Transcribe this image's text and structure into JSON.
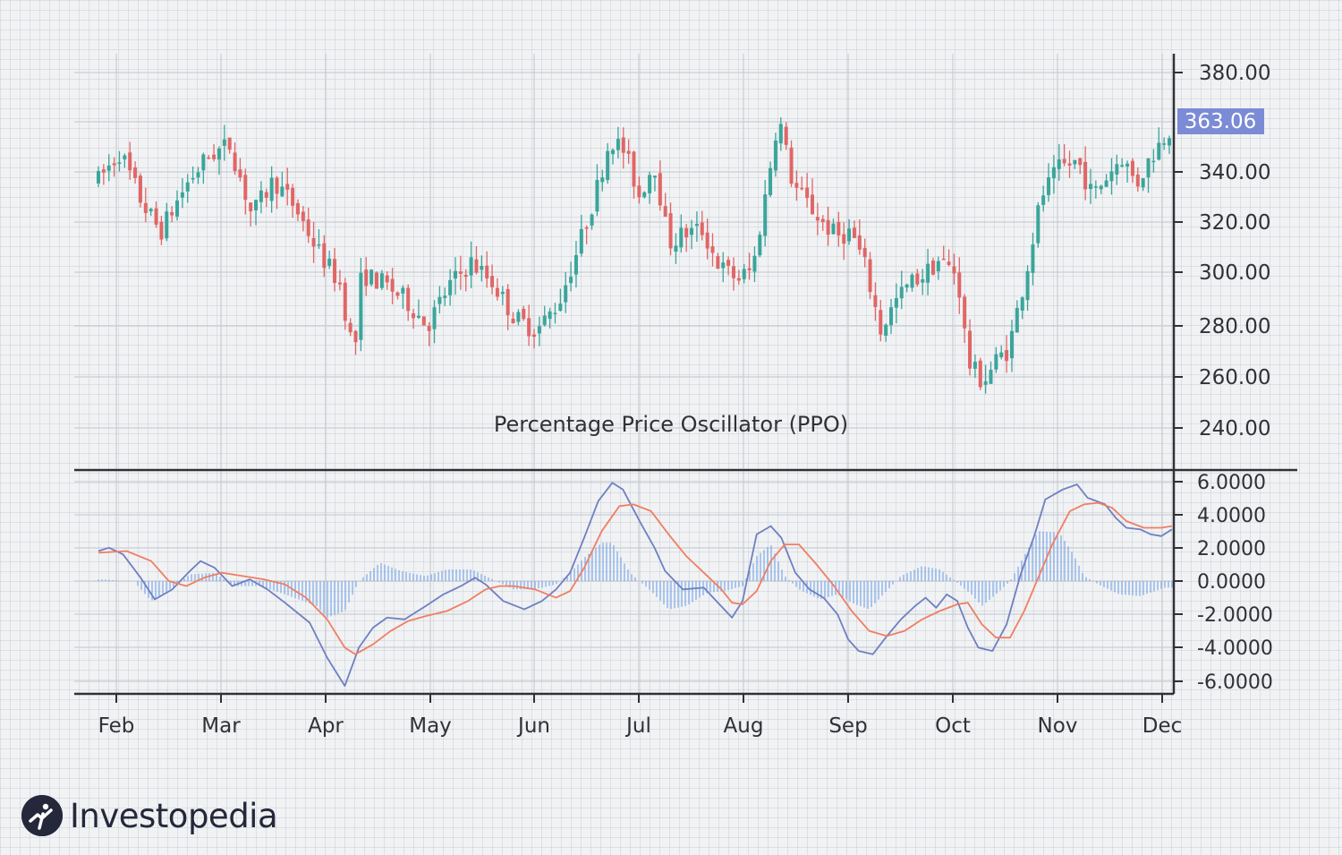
{
  "chart_data": [
    {
      "type": "candlestick",
      "title": "Percentage Price Oscillator (PPO)",
      "ylim": [
        228,
        388
      ],
      "yticks": [
        "380.00",
        "340.00",
        "320.00",
        "300.00",
        "280.00",
        "260.00",
        "240.00"
      ],
      "last_price": "363.06",
      "price_path": [
        [
          0,
          340
        ],
        [
          0.6,
          352
        ],
        [
          1.2,
          330
        ],
        [
          1.7,
          318
        ],
        [
          2.4,
          338
        ],
        [
          3.0,
          350
        ],
        [
          3.6,
          355
        ],
        [
          4.2,
          325
        ],
        [
          4.8,
          340
        ],
        [
          5.4,
          328
        ],
        [
          6.0,
          310
        ],
        [
          6.6,
          296
        ],
        [
          7.0,
          265
        ],
        [
          7.2,
          300
        ],
        [
          7.8,
          296
        ],
        [
          8.4,
          289
        ],
        [
          9.0,
          278
        ],
        [
          9.6,
          295
        ],
        [
          10.2,
          305
        ],
        [
          10.8,
          296
        ],
        [
          11.4,
          281
        ],
        [
          12.0,
          276
        ],
        [
          12.6,
          288
        ],
        [
          13.1,
          310
        ],
        [
          13.6,
          334
        ],
        [
          14.0,
          358
        ],
        [
          14.4,
          352
        ],
        [
          14.8,
          333
        ],
        [
          15.2,
          348
        ],
        [
          15.6,
          313
        ],
        [
          16.0,
          317
        ],
        [
          16.5,
          319
        ],
        [
          17.0,
          303
        ],
        [
          17.5,
          298
        ],
        [
          17.9,
          302
        ],
        [
          18.3,
          338
        ],
        [
          18.6,
          368
        ],
        [
          19.0,
          338
        ],
        [
          19.4,
          330
        ],
        [
          19.8,
          322
        ],
        [
          20.2,
          316
        ],
        [
          20.6,
          318
        ],
        [
          21.0,
          302
        ],
        [
          21.4,
          276
        ],
        [
          21.8,
          288
        ],
        [
          22.2,
          296
        ],
        [
          22.6,
          300
        ],
        [
          23.0,
          306
        ],
        [
          23.5,
          300
        ],
        [
          23.8,
          262
        ],
        [
          24.2,
          254
        ],
        [
          24.6,
          264
        ],
        [
          24.9,
          268
        ],
        [
          25.4,
          302
        ],
        [
          25.8,
          333
        ],
        [
          26.3,
          345
        ],
        [
          26.8,
          348
        ],
        [
          27.2,
          333
        ],
        [
          27.6,
          342
        ],
        [
          28.0,
          350
        ],
        [
          28.4,
          338
        ],
        [
          28.8,
          350
        ],
        [
          29.3,
          362
        ]
      ],
      "ppo_ylim": [
        -7,
        7
      ],
      "ppo_yticks": [
        "6.0000",
        "4.0000",
        "2.0000",
        "0.0000",
        "-2.0000",
        "-4.0000",
        "-6.0000"
      ],
      "ppo_series": [
        {
          "color": "#6f7fc2",
          "points": [
            [
              0,
              1.8
            ],
            [
              0.3,
              2.0
            ],
            [
              0.7,
              1.6
            ],
            [
              1.2,
              0.2
            ],
            [
              1.6,
              -1.1
            ],
            [
              2.1,
              -0.5
            ],
            [
              2.6,
              0.6
            ],
            [
              2.9,
              1.2
            ],
            [
              3.3,
              0.8
            ],
            [
              3.8,
              -0.3
            ],
            [
              4.3,
              0.1
            ],
            [
              4.8,
              -0.5
            ],
            [
              5.3,
              -1.3
            ],
            [
              6.0,
              -2.5
            ],
            [
              6.5,
              -4.6
            ],
            [
              7.0,
              -6.3
            ],
            [
              7.4,
              -4.0
            ],
            [
              7.8,
              -2.8
            ],
            [
              8.2,
              -2.2
            ],
            [
              8.7,
              -2.3
            ],
            [
              9.3,
              -1.5
            ],
            [
              9.8,
              -0.8
            ],
            [
              10.3,
              -0.3
            ],
            [
              10.7,
              0.2
            ],
            [
              11.0,
              -0.2
            ],
            [
              11.5,
              -1.2
            ],
            [
              12.1,
              -1.7
            ],
            [
              12.6,
              -1.2
            ],
            [
              13.0,
              -0.5
            ],
            [
              13.4,
              0.5
            ],
            [
              13.8,
              2.6
            ],
            [
              14.2,
              4.8
            ],
            [
              14.6,
              5.9
            ],
            [
              14.9,
              5.5
            ],
            [
              15.4,
              3.5
            ],
            [
              15.8,
              2.0
            ],
            [
              16.1,
              0.6
            ],
            [
              16.6,
              -0.5
            ],
            [
              17.2,
              -0.4
            ],
            [
              17.6,
              -1.3
            ],
            [
              18.0,
              -2.2
            ],
            [
              18.3,
              -1.2
            ],
            [
              18.7,
              2.8
            ],
            [
              19.1,
              3.3
            ],
            [
              19.4,
              2.6
            ],
            [
              19.8,
              0.5
            ],
            [
              20.2,
              -0.5
            ],
            [
              20.6,
              -1.0
            ],
            [
              21.0,
              -2.0
            ],
            [
              21.3,
              -3.5
            ],
            [
              21.6,
              -4.2
            ],
            [
              22.0,
              -4.4
            ],
            [
              22.4,
              -3.3
            ],
            [
              22.8,
              -2.3
            ],
            [
              23.2,
              -1.5
            ],
            [
              23.5,
              -1.0
            ],
            [
              23.8,
              -1.6
            ],
            [
              24.1,
              -0.8
            ],
            [
              24.4,
              -1.2
            ],
            [
              24.7,
              -2.8
            ],
            [
              25.0,
              -4.0
            ],
            [
              25.4,
              -4.2
            ],
            [
              25.8,
              -2.6
            ],
            [
              26.2,
              0.4
            ],
            [
              26.6,
              2.8
            ],
            [
              26.9,
              4.9
            ],
            [
              27.4,
              5.5
            ],
            [
              27.8,
              5.8
            ],
            [
              28.1,
              5.0
            ],
            [
              28.6,
              4.6
            ],
            [
              28.9,
              3.8
            ],
            [
              29.2,
              3.2
            ],
            [
              29.6,
              3.1
            ],
            [
              29.9,
              2.8
            ],
            [
              30.2,
              2.7
            ],
            [
              30.5,
              3.1
            ]
          ]
        },
        {
          "color": "#f07e62",
          "points": [
            [
              0,
              1.7
            ],
            [
              0.8,
              1.8
            ],
            [
              1.5,
              1.2
            ],
            [
              2.0,
              0.0
            ],
            [
              2.5,
              -0.3
            ],
            [
              3.0,
              0.2
            ],
            [
              3.5,
              0.5
            ],
            [
              4.1,
              0.3
            ],
            [
              4.7,
              0.1
            ],
            [
              5.3,
              -0.2
            ],
            [
              5.9,
              -1.0
            ],
            [
              6.5,
              -2.3
            ],
            [
              7.0,
              -4.0
            ],
            [
              7.3,
              -4.4
            ],
            [
              7.8,
              -3.8
            ],
            [
              8.3,
              -3.0
            ],
            [
              8.8,
              -2.4
            ],
            [
              9.3,
              -2.1
            ],
            [
              9.9,
              -1.8
            ],
            [
              10.5,
              -1.2
            ],
            [
              11.0,
              -0.5
            ],
            [
              11.4,
              -0.3
            ],
            [
              11.8,
              -0.3
            ],
            [
              12.4,
              -0.5
            ],
            [
              13.0,
              -1.0
            ],
            [
              13.4,
              -0.6
            ],
            [
              13.8,
              0.8
            ],
            [
              14.3,
              3.0
            ],
            [
              14.8,
              4.5
            ],
            [
              15.2,
              4.6
            ],
            [
              15.7,
              4.2
            ],
            [
              16.2,
              2.8
            ],
            [
              16.7,
              1.5
            ],
            [
              17.2,
              0.5
            ],
            [
              17.7,
              -0.5
            ],
            [
              18.0,
              -1.3
            ],
            [
              18.3,
              -1.4
            ],
            [
              18.7,
              -0.6
            ],
            [
              19.1,
              1.2
            ],
            [
              19.5,
              2.2
            ],
            [
              19.9,
              2.2
            ],
            [
              20.4,
              1.0
            ],
            [
              20.9,
              -0.3
            ],
            [
              21.4,
              -1.8
            ],
            [
              21.9,
              -3.0
            ],
            [
              22.4,
              -3.3
            ],
            [
              22.9,
              -3.0
            ],
            [
              23.4,
              -2.3
            ],
            [
              23.9,
              -1.8
            ],
            [
              24.4,
              -1.4
            ],
            [
              24.7,
              -1.3
            ],
            [
              25.1,
              -2.6
            ],
            [
              25.5,
              -3.4
            ],
            [
              25.9,
              -3.4
            ],
            [
              26.3,
              -1.8
            ],
            [
              26.7,
              0.2
            ],
            [
              27.1,
              2.2
            ],
            [
              27.6,
              4.2
            ],
            [
              28.0,
              4.6
            ],
            [
              28.4,
              4.7
            ],
            [
              28.8,
              4.4
            ],
            [
              29.2,
              3.6
            ],
            [
              29.7,
              3.2
            ],
            [
              30.2,
              3.2
            ],
            [
              30.5,
              3.3
            ]
          ]
        }
      ],
      "histogram_color": "#7ca8e8",
      "histogram_profile": [
        [
          0,
          0.1
        ],
        [
          1.0,
          0.0
        ],
        [
          1.5,
          -1.2
        ],
        [
          2.1,
          -0.4
        ],
        [
          2.6,
          0.4
        ],
        [
          3.3,
          0.5
        ],
        [
          3.8,
          -0.3
        ],
        [
          4.6,
          -0.3
        ],
        [
          5.3,
          -0.8
        ],
        [
          6.2,
          -1.5
        ],
        [
          6.5,
          -2.2
        ],
        [
          7.0,
          -1.8
        ],
        [
          7.4,
          0.0
        ],
        [
          8.0,
          1.1
        ],
        [
          8.6,
          0.6
        ],
        [
          9.3,
          0.3
        ],
        [
          9.9,
          0.7
        ],
        [
          10.6,
          0.7
        ],
        [
          11.2,
          0.1
        ],
        [
          11.8,
          -0.5
        ],
        [
          12.4,
          -0.5
        ],
        [
          13.0,
          -0.2
        ],
        [
          13.4,
          0.5
        ],
        [
          13.8,
          1.4
        ],
        [
          14.3,
          2.3
        ],
        [
          14.6,
          2.3
        ],
        [
          15.1,
          0.5
        ],
        [
          15.7,
          -0.6
        ],
        [
          16.2,
          -1.7
        ],
        [
          16.7,
          -1.5
        ],
        [
          17.3,
          -0.7
        ],
        [
          17.8,
          -0.6
        ],
        [
          18.3,
          -0.3
        ],
        [
          18.7,
          1.5
        ],
        [
          19.1,
          2.2
        ],
        [
          19.5,
          0.3
        ],
        [
          19.9,
          -0.5
        ],
        [
          20.5,
          -1.1
        ],
        [
          21.0,
          -0.8
        ],
        [
          21.5,
          -1.4
        ],
        [
          21.9,
          -1.7
        ],
        [
          22.3,
          -0.8
        ],
        [
          22.8,
          0.3
        ],
        [
          23.4,
          0.9
        ],
        [
          23.9,
          0.7
        ],
        [
          24.4,
          -0.1
        ],
        [
          24.8,
          -0.8
        ],
        [
          25.1,
          -1.5
        ],
        [
          25.5,
          -0.8
        ],
        [
          25.9,
          0.0
        ],
        [
          26.3,
          1.5
        ],
        [
          26.7,
          3.0
        ],
        [
          27.3,
          2.9
        ],
        [
          27.7,
          1.6
        ],
        [
          28.0,
          0.3
        ],
        [
          28.5,
          -0.3
        ],
        [
          29.0,
          -0.8
        ],
        [
          29.6,
          -0.9
        ],
        [
          30.3,
          -0.4
        ]
      ],
      "months": [
        "Feb",
        "Mar",
        "Apr",
        "May",
        "Jun",
        "Jul",
        "Aug",
        "Sep",
        "Oct",
        "Nov",
        "Dec"
      ],
      "colors": {
        "up": "#3aa59b",
        "down": "#e06666",
        "price_tag": "#7b8bd6",
        "axis": "#2f3137",
        "grid": "#c9cdd3"
      }
    }
  ],
  "logo": {
    "text": "Investopedia"
  }
}
